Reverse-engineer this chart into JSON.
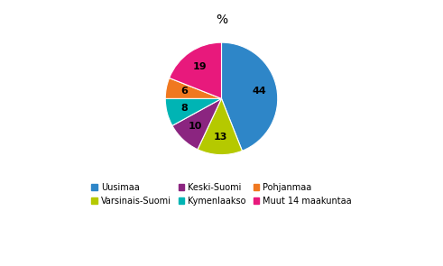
{
  "labels": [
    "Uusimaa",
    "Varsinais-Suomi",
    "Keski-Suomi",
    "Kymenlaakso",
    "Pohjanmaa",
    "Muut 14 maakuntaa"
  ],
  "values": [
    44,
    13,
    10,
    8,
    6,
    19
  ],
  "colors": [
    "#2e86c8",
    "#b5c900",
    "#8b2580",
    "#00b4b4",
    "#f07820",
    "#e8197c"
  ],
  "title": "%",
  "legend_labels": [
    "Uusimaa",
    "Varsinais-Suomi",
    "Keski-Suomi",
    "Kymenlaakso",
    "Pohjanmaa",
    "Muut 14 maakuntaa"
  ],
  "startangle": 90
}
